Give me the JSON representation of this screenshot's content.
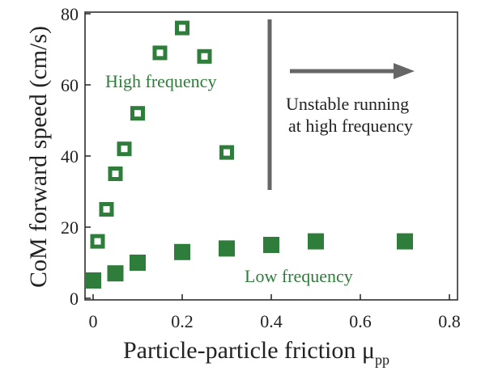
{
  "chart_data": {
    "type": "scatter",
    "xlabel": "Particle-particle friction μ",
    "xlabel_subscript": "pp",
    "ylabel": "CoM forward speed (cm/s)",
    "xlim": [
      0,
      0.8
    ],
    "ylim": [
      0,
      80
    ],
    "x_ticks": [
      0,
      0.2,
      0.4,
      0.6,
      0.8
    ],
    "x_tick_labels": [
      "0",
      "0.2",
      "0.4",
      "0.6",
      "0.8"
    ],
    "y_ticks": [
      0,
      20,
      40,
      60,
      80
    ],
    "y_tick_labels": [
      "0",
      "20",
      "40",
      "60",
      "80"
    ],
    "grid": false,
    "series": [
      {
        "name": "High frequency",
        "marker": "open-square",
        "color": "#2e7d3a",
        "x": [
          0.01,
          0.03,
          0.05,
          0.07,
          0.1,
          0.15,
          0.2,
          0.25,
          0.3
        ],
        "y": [
          16,
          25,
          35,
          42,
          52,
          69,
          76,
          68,
          41
        ]
      },
      {
        "name": "Low frequency",
        "marker": "filled-square",
        "color": "#2e7d3a",
        "x": [
          0,
          0.05,
          0.1,
          0.2,
          0.3,
          0.4,
          0.5,
          0.7
        ],
        "y": [
          5,
          7,
          10,
          13,
          14,
          15,
          16,
          16
        ]
      }
    ],
    "annotations": {
      "threshold_x": 0.4,
      "threshold_y_range": [
        30,
        80
      ],
      "unstable_line1": "Unstable running",
      "unstable_line2": "at high frequency",
      "arrow_direction": "right"
    }
  },
  "colors": {
    "series": "#2e7d3a",
    "annotation": "#666666",
    "text": "#222222"
  }
}
